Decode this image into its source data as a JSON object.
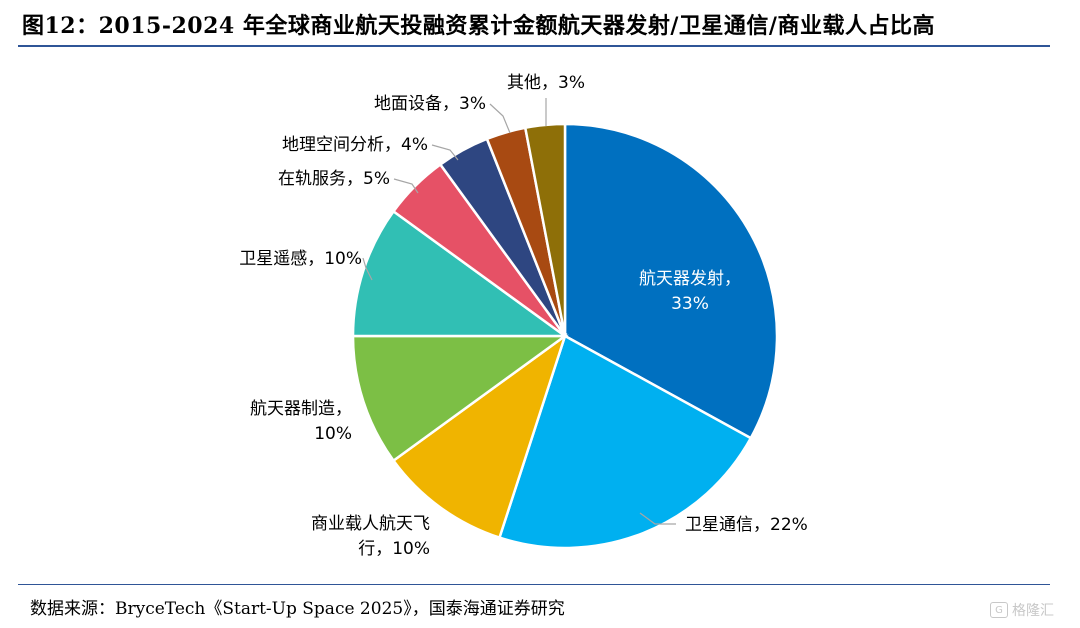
{
  "header": {
    "title": "图12：2015-2024 年全球商业航天投融资累计金额航天器发射/卫星通信/商业载人占比高"
  },
  "footer": {
    "source": "数据来源：BryceTech《Start-Up Space 2025》，国泰海通证券研究",
    "watermark": "格隆汇"
  },
  "chart_data": {
    "type": "pie",
    "title": "",
    "start_angle_deg": 0,
    "direction": "clockwise",
    "slices": [
      {
        "name": "航天器发射",
        "value": 33,
        "label_lines": [
          "航天器发射，",
          "33%"
        ],
        "color": "#0070c0",
        "label_position": "inside"
      },
      {
        "name": "卫星通信",
        "value": 22,
        "label_lines": [
          "卫星通信，22%"
        ],
        "color": "#00b0f0",
        "label_position": "outside"
      },
      {
        "name": "商业载人航天飞行",
        "value": 10,
        "label_lines": [
          "商业载人航天飞",
          "行，10%"
        ],
        "color": "#f0b400",
        "label_position": "outside"
      },
      {
        "name": "航天器制造",
        "value": 10,
        "label_lines": [
          "航天器制造，",
          "10%"
        ],
        "color": "#7cbf45",
        "label_position": "outside"
      },
      {
        "name": "卫星遥感",
        "value": 10,
        "label_lines": [
          "卫星遥感，10%"
        ],
        "color": "#31bfb4",
        "label_position": "outside"
      },
      {
        "name": "在轨服务",
        "value": 5,
        "label_lines": [
          "在轨服务，5%"
        ],
        "color": "#e65166",
        "label_position": "outside"
      },
      {
        "name": "地理空间分析",
        "value": 4,
        "label_lines": [
          "地理空间分析，4%"
        ],
        "color": "#2e4681",
        "label_position": "outside"
      },
      {
        "name": "地面设备",
        "value": 3,
        "label_lines": [
          "地面设备，3%"
        ],
        "color": "#a84a12",
        "label_position": "outside"
      },
      {
        "name": "其他",
        "value": 3,
        "label_lines": [
          "其他，3%"
        ],
        "color": "#8e6f08",
        "label_position": "outside"
      }
    ]
  }
}
